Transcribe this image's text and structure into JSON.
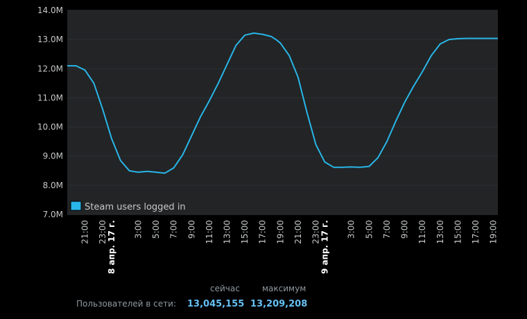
{
  "chart_data": {
    "type": "line",
    "ylim": [
      7.0,
      14.0
    ],
    "yticks": [
      {
        "value": 7.0,
        "label": "7.0M"
      },
      {
        "value": 8.0,
        "label": "8.0M"
      },
      {
        "value": 9.0,
        "label": "9.0M"
      },
      {
        "value": 10.0,
        "label": "10.0M"
      },
      {
        "value": 11.0,
        "label": "11.0M"
      },
      {
        "value": 12.0,
        "label": "12.0M"
      },
      {
        "value": 13.0,
        "label": "13.0M"
      },
      {
        "value": 14.0,
        "label": "14.0M"
      }
    ],
    "xlim": [
      19,
      67.5
    ],
    "xticks": [
      {
        "value": 21,
        "label": "21:00",
        "bold": false
      },
      {
        "value": 23,
        "label": "23:00",
        "bold": false
      },
      {
        "value": 24,
        "label": "8 апр. 17 г.",
        "bold": true
      },
      {
        "value": 27,
        "label": "3:00",
        "bold": false
      },
      {
        "value": 29,
        "label": "5:00",
        "bold": false
      },
      {
        "value": 31,
        "label": "7:00",
        "bold": false
      },
      {
        "value": 33,
        "label": "9:00",
        "bold": false
      },
      {
        "value": 35,
        "label": "11:00",
        "bold": false
      },
      {
        "value": 37,
        "label": "13:00",
        "bold": false
      },
      {
        "value": 39,
        "label": "15:00",
        "bold": false
      },
      {
        "value": 41,
        "label": "17:00",
        "bold": false
      },
      {
        "value": 43,
        "label": "19:00",
        "bold": false
      },
      {
        "value": 45,
        "label": "21:00",
        "bold": false
      },
      {
        "value": 47,
        "label": "23:00",
        "bold": false
      },
      {
        "value": 48,
        "label": "9 апр. 17 г.",
        "bold": true
      },
      {
        "value": 51,
        "label": "3:00",
        "bold": false
      },
      {
        "value": 53,
        "label": "5:00",
        "bold": false
      },
      {
        "value": 55,
        "label": "7:00",
        "bold": false
      },
      {
        "value": 57,
        "label": "9:00",
        "bold": false
      },
      {
        "value": 59,
        "label": "11:00",
        "bold": false
      },
      {
        "value": 61,
        "label": "13:00",
        "bold": false
      },
      {
        "value": 63,
        "label": "15:00",
        "bold": false
      },
      {
        "value": 65,
        "label": "17:00",
        "bold": false
      },
      {
        "value": 67,
        "label": "19:00",
        "bold": false
      }
    ],
    "grid": true,
    "legend": "bottom-left",
    "series": [
      {
        "name": "Steam users logged in",
        "color": "#29b6e8",
        "x": [
          19,
          20,
          21,
          22,
          23,
          24,
          25,
          26,
          27,
          28,
          29,
          30,
          31,
          32,
          33,
          34,
          35,
          36,
          37,
          38,
          39,
          40,
          41,
          42,
          42.5,
          43,
          44,
          45,
          46,
          47,
          48,
          49,
          50,
          51,
          52,
          53,
          54,
          55,
          56,
          57,
          58,
          59,
          60,
          61,
          62,
          63,
          64,
          65,
          66,
          67,
          67.5
        ],
        "y": [
          12.1,
          12.1,
          11.95,
          11.5,
          10.6,
          9.6,
          8.85,
          8.5,
          8.45,
          8.48,
          8.45,
          8.42,
          8.6,
          9.05,
          9.7,
          10.35,
          10.9,
          11.5,
          12.15,
          12.8,
          13.15,
          13.22,
          13.18,
          13.1,
          13.0,
          12.88,
          12.45,
          11.7,
          10.5,
          9.4,
          8.8,
          8.62,
          8.62,
          8.63,
          8.62,
          8.65,
          8.95,
          9.5,
          10.2,
          10.85,
          11.4,
          11.9,
          12.45,
          12.85,
          13.0,
          13.03,
          13.04,
          13.04,
          13.04,
          13.04,
          13.04
        ]
      }
    ]
  },
  "stats": {
    "now_label": "сейчас",
    "max_label": "максимум",
    "users_label": "Пользователей в сети:",
    "now_value": "13,045,155",
    "max_value": "13,209,208"
  }
}
